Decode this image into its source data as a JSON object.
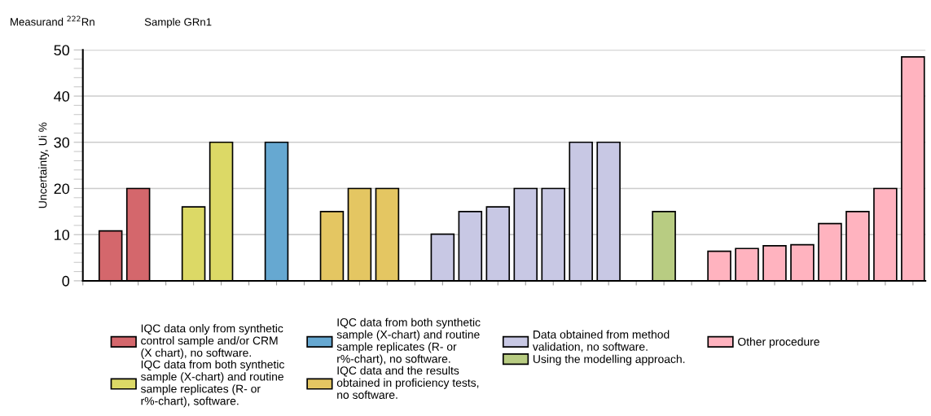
{
  "chart_data": {
    "type": "bar",
    "title": "Measurand $^{222}$Rn",
    "subtitle": "Sample GRn1",
    "ylabel": "Uncertainty, Ui %",
    "categories": [
      null,
      null,
      null,
      null,
      null,
      null,
      null,
      null,
      null,
      null,
      null,
      null,
      null,
      null,
      null,
      null,
      null,
      null,
      null,
      null,
      null,
      null,
      null,
      null,
      null,
      null,
      null,
      null,
      null,
      null
    ],
    "series": [
      {
        "name": "IQC data only from synthetic\ncontrol sample and/or CRM\n(X chart), no software.",
        "color": "#d4676c",
        "values": [
          10.8,
          20,
          null,
          null,
          null,
          null,
          null,
          null,
          null,
          null,
          null,
          null,
          null,
          null,
          null,
          null,
          null,
          null,
          null,
          null,
          null,
          null,
          null,
          null,
          null,
          null,
          null,
          null,
          null,
          null
        ]
      },
      {
        "name": "IQC data from both synthetic\nsample (X-chart) and routine\nsample replicates (R- or\nr%-chart), software.",
        "color": "#dcd966",
        "values": [
          null,
          null,
          null,
          16,
          30,
          null,
          null,
          null,
          null,
          null,
          null,
          null,
          null,
          null,
          null,
          null,
          null,
          null,
          null,
          null,
          null,
          null,
          null,
          null,
          null,
          null,
          null,
          null,
          null,
          null
        ]
      },
      {
        "name": "IQC data from both synthetic\nsample (X-chart) and routine\nsample replicates (R- or\nr%-chart), no software.",
        "color": "#66a8d1",
        "values": [
          null,
          null,
          null,
          null,
          null,
          null,
          30,
          null,
          null,
          null,
          null,
          null,
          null,
          null,
          null,
          null,
          null,
          null,
          null,
          null,
          null,
          null,
          null,
          null,
          null,
          null,
          null,
          null,
          null,
          null
        ]
      },
      {
        "name": "IQC data and the results\nobtained in proficiency tests,\nno software.",
        "color": "#e4c662",
        "values": [
          null,
          null,
          null,
          null,
          null,
          null,
          null,
          null,
          15,
          20,
          20,
          null,
          null,
          null,
          null,
          null,
          null,
          null,
          null,
          null,
          null,
          null,
          null,
          null,
          null,
          null,
          null,
          null,
          null,
          null
        ]
      },
      {
        "name": "Data obtained from method\nvalidation, no software.",
        "color": "#c8c8e4",
        "values": [
          null,
          null,
          null,
          null,
          null,
          null,
          null,
          null,
          null,
          null,
          null,
          null,
          10.1,
          15,
          16,
          20,
          20,
          30,
          30,
          null,
          null,
          null,
          null,
          null,
          null,
          null,
          null,
          null,
          null,
          null
        ]
      },
      {
        "name": "Using the modelling approach.",
        "color": "#b8cc82",
        "values": [
          null,
          null,
          null,
          null,
          null,
          null,
          null,
          null,
          null,
          null,
          null,
          null,
          null,
          null,
          null,
          null,
          null,
          null,
          null,
          null,
          15,
          null,
          null,
          null,
          null,
          null,
          null,
          null,
          null,
          null
        ]
      },
      {
        "name": "Other procedure",
        "color": "#ffb3bf",
        "values": [
          null,
          null,
          null,
          null,
          null,
          null,
          null,
          null,
          null,
          null,
          null,
          null,
          null,
          null,
          null,
          null,
          null,
          null,
          null,
          null,
          null,
          null,
          6.4,
          7,
          7.6,
          7.8,
          12.4,
          15,
          20,
          48.5
        ]
      }
    ],
    "ylim": [
      0,
      50
    ],
    "yticks": [
      0,
      10,
      20,
      30,
      40,
      50
    ],
    "grid": "y",
    "legend": "bottom"
  }
}
